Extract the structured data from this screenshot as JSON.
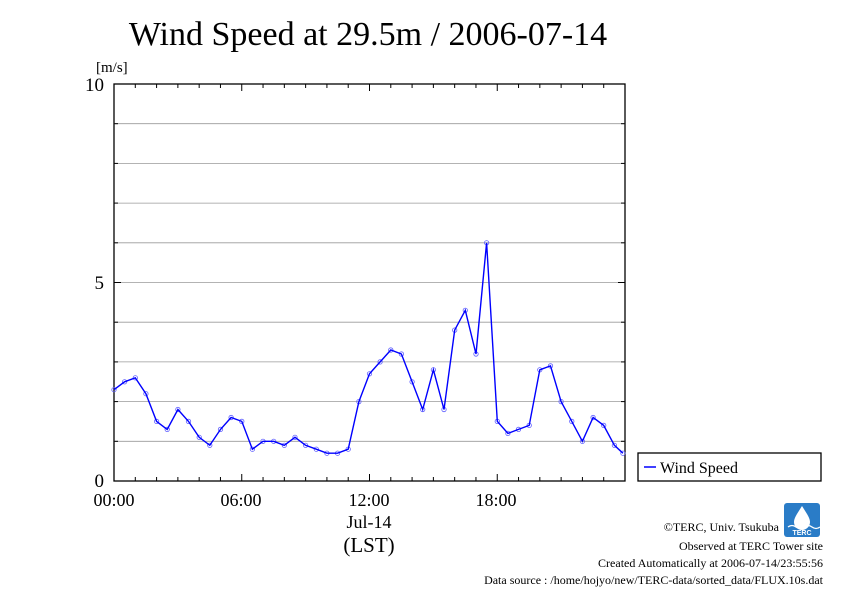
{
  "chart_data": {
    "type": "scatter",
    "title": "Wind Speed at 29.5m / 2006-07-14",
    "ylabel": "[m/s]",
    "xlabel": "(LST)",
    "ylim": [
      0,
      10
    ],
    "xlim": [
      "00:00",
      "24:00"
    ],
    "y_ticks": [
      "0",
      "5",
      "10"
    ],
    "x_ticks": [
      "00:00",
      "06:00",
      "12:00",
      "18:00"
    ],
    "x_date_label": "Jul-14",
    "grid": true,
    "legend_position": "right",
    "series": [
      {
        "name": "Wind Speed",
        "color": "#0000ff",
        "x_hours": [
          0,
          0.5,
          1,
          1.5,
          2,
          2.5,
          3,
          3.5,
          4,
          4.5,
          5,
          5.5,
          6,
          6.5,
          7,
          7.5,
          8,
          8.5,
          9,
          9.5,
          10,
          10.5,
          11,
          11.5,
          12,
          12.5,
          13,
          13.5,
          14,
          14.5,
          15,
          15.5,
          16,
          16.5,
          17,
          17.5,
          18,
          18.5,
          19,
          19.5,
          20,
          20.5,
          21,
          21.5,
          22,
          22.5,
          23,
          23.5,
          23.9
        ],
        "values": [
          2.3,
          2.5,
          2.6,
          2.2,
          1.5,
          1.3,
          1.8,
          1.5,
          1.1,
          0.9,
          1.3,
          1.6,
          1.5,
          0.8,
          1.0,
          1.0,
          0.9,
          1.1,
          0.9,
          0.8,
          0.7,
          0.7,
          0.8,
          2.0,
          2.7,
          3.0,
          3.3,
          3.2,
          2.5,
          1.8,
          2.8,
          1.8,
          3.8,
          4.3,
          3.2,
          6.0,
          1.5,
          1.2,
          1.3,
          1.4,
          2.8,
          2.9,
          2.0,
          1.5,
          1.0,
          1.6,
          1.4,
          0.9,
          0.7
        ]
      }
    ]
  },
  "credits": {
    "copyright": "©TERC, Univ. Tsukuba",
    "observed": "Observed at TERC Tower site",
    "created": "Created Automatically at 2006-07-14/23:55:56",
    "source": "Data source : /home/hojyo/new/TERC-data/sorted_data/FLUX.10s.dat",
    "logo_text": "TERC"
  }
}
